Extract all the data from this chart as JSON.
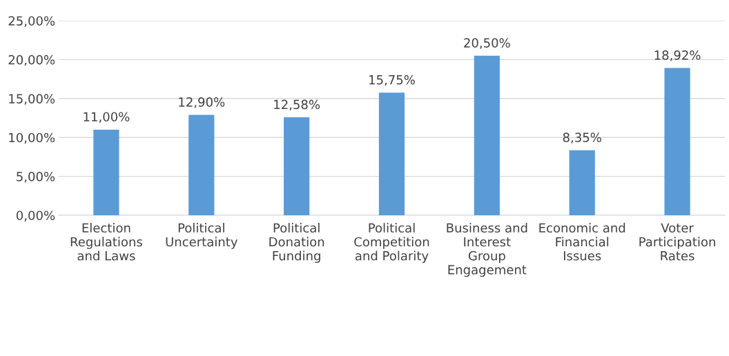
{
  "chart_data": {
    "type": "bar",
    "categories": [
      "Election\nRegulations\nand Laws",
      "Political\nUncertainty",
      "Political\nDonation\nFunding",
      "Political\nCompetition\nand Polarity",
      "Business and\nInterest\nGroup\nEngagement",
      "Economic and\nFinancial\nIssues",
      "Voter\nParticipation\nRates"
    ],
    "values": [
      11.0,
      12.9,
      12.58,
      15.75,
      20.5,
      8.35,
      18.92
    ],
    "value_labels": [
      "11,00%",
      "12,90%",
      "12,58%",
      "15,75%",
      "20,50%",
      "8,35%",
      "18,92%"
    ],
    "color": "#5b9bd5",
    "ylim": [
      0,
      25
    ],
    "yticks": [
      {
        "value": 0,
        "label": "0,00%"
      },
      {
        "value": 5,
        "label": "5,00%"
      },
      {
        "value": 10,
        "label": "10,00%"
      },
      {
        "value": 15,
        "label": "15,00%"
      },
      {
        "value": 20,
        "label": "20,00%"
      },
      {
        "value": 25,
        "label": "25,00%"
      }
    ],
    "grid": "y",
    "legend": false
  }
}
